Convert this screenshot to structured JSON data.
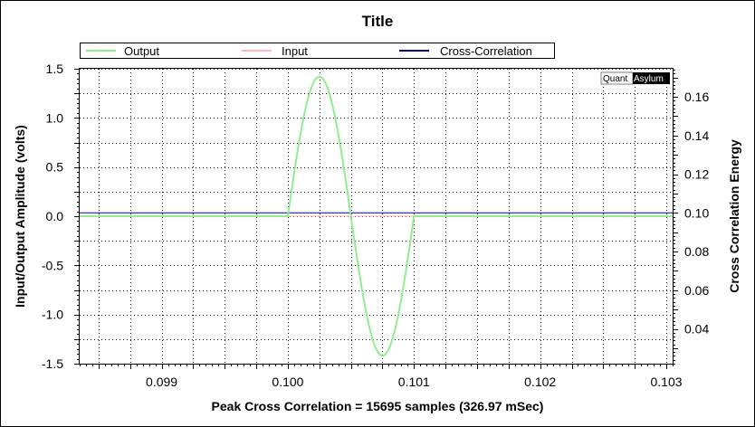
{
  "chart_data": {
    "type": "line",
    "title": "Title",
    "xlabel": "Peak Cross Correlation = 15695 samples  (326.97 mSec)",
    "ylabel": "Input/Output Amplitude (volts)",
    "ylabel_right": "Cross Correlation Energy",
    "xlim": [
      0.09835,
      0.10305
    ],
    "ylim": [
      -1.5,
      1.5
    ],
    "ylim_right": [
      0.022,
      0.1745
    ],
    "x_ticks": [
      0.099,
      0.1,
      0.101,
      0.102,
      0.103
    ],
    "x_tick_labels": [
      "0.099",
      "0.100",
      "0.101",
      "0.102",
      "0.103"
    ],
    "y_ticks": [
      -1.5,
      -1.0,
      -0.5,
      0.0,
      0.5,
      1.0,
      1.5
    ],
    "y_tick_labels": [
      "-1.5",
      "-1.0",
      "-0.5",
      "0.0",
      "0.5",
      "1.0",
      "1.5"
    ],
    "y_right_ticks": [
      0.04,
      0.06,
      0.08,
      0.1,
      0.12,
      0.14,
      0.16
    ],
    "y_right_tick_labels": [
      "0.04",
      "0.06",
      "0.08",
      "0.10",
      "0.12",
      "0.14",
      "0.16"
    ],
    "grid": true,
    "legend_position": "top",
    "series": [
      {
        "name": "Output",
        "color": "#90ee90",
        "shape": "one-cycle sine burst",
        "burst_start": 0.1,
        "burst_end": 0.101,
        "amplitude": 1.42,
        "baseline": 0.0
      },
      {
        "name": "Input",
        "color": "#ffb6c1",
        "shape": "flat",
        "value": 0.0
      },
      {
        "name": "Cross-Correlation",
        "color": "#00008b",
        "axis": "right",
        "shape": "flat",
        "value": 0.1
      }
    ]
  },
  "logo": {
    "part1": "Quant",
    "part2": "Asylum"
  }
}
